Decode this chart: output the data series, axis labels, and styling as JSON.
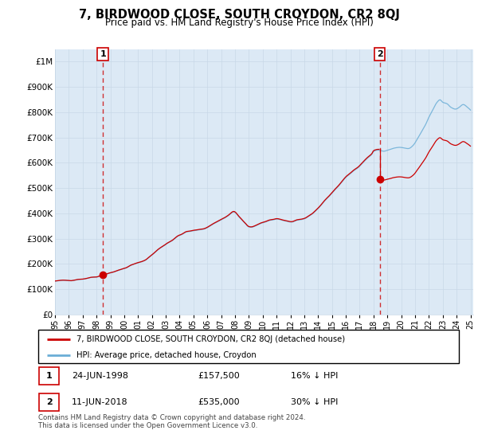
{
  "title": "7, BIRDWOOD CLOSE, SOUTH CROYDON, CR2 8QJ",
  "subtitle": "Price paid vs. HM Land Registry's House Price Index (HPI)",
  "sale1_date": "24-JUN-1998",
  "sale1_price": 157500,
  "sale1_label": "16% ↓ HPI",
  "sale1_year": 1998.46,
  "sale2_date": "11-JUN-2018",
  "sale2_price": 535000,
  "sale2_label": "30% ↓ HPI",
  "sale2_year": 2018.46,
  "legend_line1": "7, BIRDWOOD CLOSE, SOUTH CROYDON, CR2 8QJ (detached house)",
  "legend_line2": "HPI: Average price, detached house, Croydon",
  "footer": "Contains HM Land Registry data © Crown copyright and database right 2024.\nThis data is licensed under the Open Government Licence v3.0.",
  "hpi_color": "#6baed6",
  "price_color": "#cc0000",
  "marker_color": "#cc0000",
  "bg_fill_color": "#dce9f5",
  "ylim": [
    0,
    1050000
  ],
  "yticks": [
    0,
    100000,
    200000,
    300000,
    400000,
    500000,
    600000,
    700000,
    800000,
    900000,
    1000000
  ],
  "ytick_labels": [
    "£0",
    "£100K",
    "£200K",
    "£300K",
    "£400K",
    "£500K",
    "£600K",
    "£700K",
    "£800K",
    "£900K",
    "£1M"
  ],
  "background_color": "#ffffff",
  "grid_color": "#c8d8e8"
}
